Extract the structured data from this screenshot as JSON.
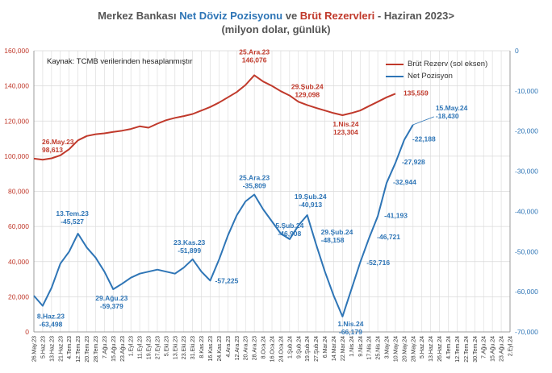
{
  "header": {
    "title_part1": "Merkez Bankası ",
    "title_part2": "Net Döviz Pozisyonu",
    "title_part3": " ve ",
    "title_part4": "Brüt Rezervleri",
    "title_part5": " - Haziran 2023>",
    "subtitle": "(milyon dolar, günlük)"
  },
  "source_note": "Kaynak: TCMB verilerinden  hesaplanmıştır",
  "colors": {
    "reserve": "#c0392b",
    "net": "#2e75b6",
    "grid": "#d9d9d9"
  },
  "chart_data": {
    "type": "line",
    "title": "Merkez Bankası Net Döviz Pozisyonu ve Brüt Rezervleri - Haziran 2023>",
    "subtitle": "(milyon dolar, günlük)",
    "left_axis": {
      "ylim": [
        0,
        160000
      ],
      "ticks": [
        "0",
        "20,000",
        "40,000",
        "60,000",
        "80,000",
        "100,000",
        "120,000",
        "140,000",
        "160,000"
      ]
    },
    "right_axis": {
      "ylim": [
        -70000,
        0
      ],
      "ticks": [
        "0",
        "-10,000",
        "-20,000",
        "-30,000",
        "-40,000",
        "-50,000",
        "-60,000",
        "-70,000"
      ]
    },
    "x_ticks": [
      "26.May.23",
      "5.Haz.23",
      "13.Haz.23",
      "21.Haz.23",
      "4.Tem.23",
      "12.Tem.23",
      "20.Tem.23",
      "28.Tem.23",
      "7.Ağu.23",
      "15.Ağu.23",
      "23.Ağu.23",
      "1.Eyl.23",
      "11.Eyl.23",
      "19.Eyl.23",
      "27.Eyl.23",
      "5.Eki.23",
      "13.Eki.23",
      "23.Eki.23",
      "31.Eki.23",
      "8.Kas.23",
      "16.Kas.23",
      "24.Kas.23",
      "4.Ara.23",
      "12.Ara.23",
      "20.Ara.23",
      "28.Ara.23",
      "8.Oca.24",
      "16.Oca.24",
      "24.Oca.24",
      "1.Şub.24",
      "9.Şub.24",
      "19.Şub.24",
      "27.Şub.24",
      "6.Mar.24",
      "14.Mar.24",
      "22.Mar.24",
      "1.Nis.24",
      "9.Nis.24",
      "17.Nis.24",
      "25.Nis.24",
      "3.May.24",
      "10.May.24",
      "20.May.24",
      "28.May.24",
      "5.Haz.24",
      "13.Haz.24",
      "26.Haz.24",
      "4.Tem.24",
      "12.Tem.24",
      "22.Tem.24",
      "30.Tem.24",
      "7.Ağu.24",
      "15.Ağu.24",
      "23.Ağu.24",
      "2.Eyl.24"
    ],
    "series": [
      {
        "name": "Brüt Rezerv (sol eksen)",
        "axis": "left",
        "points": [
          [
            0,
            98613
          ],
          [
            1,
            98000
          ],
          [
            2,
            98800
          ],
          [
            3,
            100500
          ],
          [
            4,
            104000
          ],
          [
            5,
            109000
          ],
          [
            6,
            111500
          ],
          [
            7,
            112500
          ],
          [
            8,
            113000
          ],
          [
            9,
            113800
          ],
          [
            10,
            114500
          ],
          [
            11,
            115500
          ],
          [
            12,
            117000
          ],
          [
            13,
            116200
          ],
          [
            14,
            118500
          ],
          [
            15,
            120500
          ],
          [
            16,
            121800
          ],
          [
            17,
            122800
          ],
          [
            18,
            124000
          ],
          [
            19,
            126000
          ],
          [
            20,
            128000
          ],
          [
            21,
            130500
          ],
          [
            22,
            133500
          ],
          [
            23,
            136500
          ],
          [
            24,
            140500
          ],
          [
            25,
            146076
          ],
          [
            26,
            142500
          ],
          [
            27,
            140000
          ],
          [
            28,
            137000
          ],
          [
            29,
            134500
          ],
          [
            30,
            131000
          ],
          [
            31,
            129098
          ],
          [
            32,
            127500
          ],
          [
            33,
            126000
          ],
          [
            34,
            124500
          ],
          [
            35,
            123304
          ],
          [
            36,
            124500
          ],
          [
            37,
            126000
          ],
          [
            38,
            128500
          ],
          [
            39,
            131000
          ],
          [
            40,
            133500
          ],
          [
            41,
            135559
          ]
        ]
      },
      {
        "name": "Net Pozisyon",
        "axis": "right",
        "points": [
          [
            0,
            -61000
          ],
          [
            1,
            -63498
          ],
          [
            2,
            -59000
          ],
          [
            3,
            -53000
          ],
          [
            4,
            -50000
          ],
          [
            5,
            -45527
          ],
          [
            6,
            -49000
          ],
          [
            7,
            -51500
          ],
          [
            8,
            -55000
          ],
          [
            9,
            -59379
          ],
          [
            10,
            -58000
          ],
          [
            11,
            -56500
          ],
          [
            12,
            -55500
          ],
          [
            13,
            -55000
          ],
          [
            14,
            -54500
          ],
          [
            15,
            -55000
          ],
          [
            16,
            -55500
          ],
          [
            17,
            -54000
          ],
          [
            18,
            -51899
          ],
          [
            19,
            -55000
          ],
          [
            20,
            -57225
          ],
          [
            21,
            -52000
          ],
          [
            22,
            -46000
          ],
          [
            23,
            -41000
          ],
          [
            24,
            -37500
          ],
          [
            25,
            -35809
          ],
          [
            26,
            -39500
          ],
          [
            27,
            -42500
          ],
          [
            28,
            -45500
          ],
          [
            29,
            -46908
          ],
          [
            30,
            -43500
          ],
          [
            31,
            -40913
          ],
          [
            32,
            -48158
          ],
          [
            33,
            -55000
          ],
          [
            34,
            -61000
          ],
          [
            35,
            -66179
          ],
          [
            36,
            -59500
          ],
          [
            37,
            -52716
          ],
          [
            38,
            -46721
          ],
          [
            39,
            -41193
          ],
          [
            40,
            -32944
          ],
          [
            41,
            -27928
          ],
          [
            42,
            -22188
          ],
          [
            43,
            -18430
          ]
        ]
      }
    ],
    "annotations": [
      {
        "series": 0,
        "x": 0,
        "date": "26.May.23",
        "value": "98,613"
      },
      {
        "series": 0,
        "x": 25,
        "date": "25.Ara.23",
        "value": "146,076"
      },
      {
        "series": 0,
        "x": 31,
        "date": "29.Şub.24",
        "value": "129,098"
      },
      {
        "series": 0,
        "x": 35,
        "date": "1.Nis.24",
        "value": "123,304"
      },
      {
        "series": 0,
        "x": 41,
        "date": "",
        "value": "135,559"
      },
      {
        "series": 1,
        "x": 1,
        "date": "8.Haz.23",
        "value": "-63,498"
      },
      {
        "series": 1,
        "x": 5,
        "date": "13.Tem.23",
        "value": "-45,527"
      },
      {
        "series": 1,
        "x": 9,
        "date": "29.Ağu.23",
        "value": "-59,379"
      },
      {
        "series": 1,
        "x": 18,
        "date": "23.Kas.23",
        "value": "-51,899"
      },
      {
        "series": 1,
        "x": 20,
        "date": "",
        "value": "-57,225"
      },
      {
        "series": 1,
        "x": 25,
        "date": "25.Ara.23",
        "value": "-35,809"
      },
      {
        "series": 1,
        "x": 29,
        "date": "5.Şub.24",
        "value": "-46,908"
      },
      {
        "series": 1,
        "x": 31,
        "date": "19.Şub.24",
        "value": "-40,913"
      },
      {
        "series": 1,
        "x": 32,
        "date": "29.Şub.24",
        "value": "-48,158"
      },
      {
        "series": 1,
        "x": 35,
        "date": "1.Nis.24",
        "value": "-66,179"
      },
      {
        "series": 1,
        "x": 37,
        "date": "",
        "value": "-52,716"
      },
      {
        "series": 1,
        "x": 38,
        "date": "",
        "value": "-46,721"
      },
      {
        "series": 1,
        "x": 39,
        "date": "",
        "value": "-41,193"
      },
      {
        "series": 1,
        "x": 40,
        "date": "",
        "value": "-32,944"
      },
      {
        "series": 1,
        "x": 41,
        "date": "",
        "value": "-27,928"
      },
      {
        "series": 1,
        "x": 42,
        "date": "",
        "value": "-22,188"
      },
      {
        "series": 1,
        "x": 43,
        "date": "15.May.24",
        "value": "-18,430"
      }
    ]
  }
}
